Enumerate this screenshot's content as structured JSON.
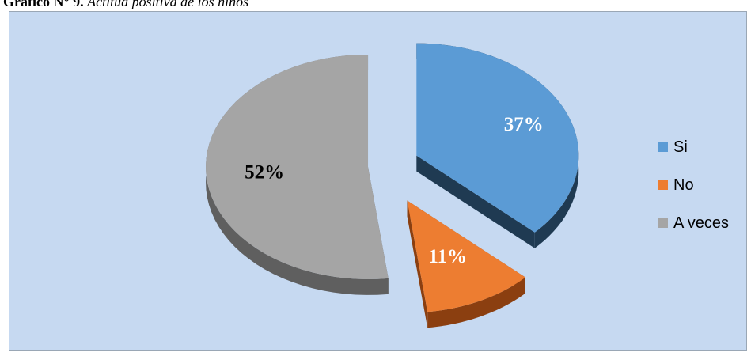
{
  "caption": {
    "label": "Gráfico N° 9.",
    "text": "Actitud positiva de los niños"
  },
  "chart_data": {
    "type": "pie",
    "title": "",
    "slices": [
      {
        "name": "Si",
        "value": 37,
        "label": "37%",
        "color": "#5b9bd5",
        "side_color": "#1f3a52",
        "label_color": "#ffffff"
      },
      {
        "name": "No",
        "value": 11,
        "label": "11%",
        "color": "#ed7d31",
        "side_color": "#8b3f10",
        "label_color": "#ffffff"
      },
      {
        "name": "A veces",
        "value": 52,
        "label": "52%",
        "color": "#a5a5a5",
        "side_color": "#5f5f5f",
        "label_color": "#000000"
      }
    ],
    "legend_position": "right",
    "background_color": "#c6d9f1",
    "style": "3d exploded"
  }
}
